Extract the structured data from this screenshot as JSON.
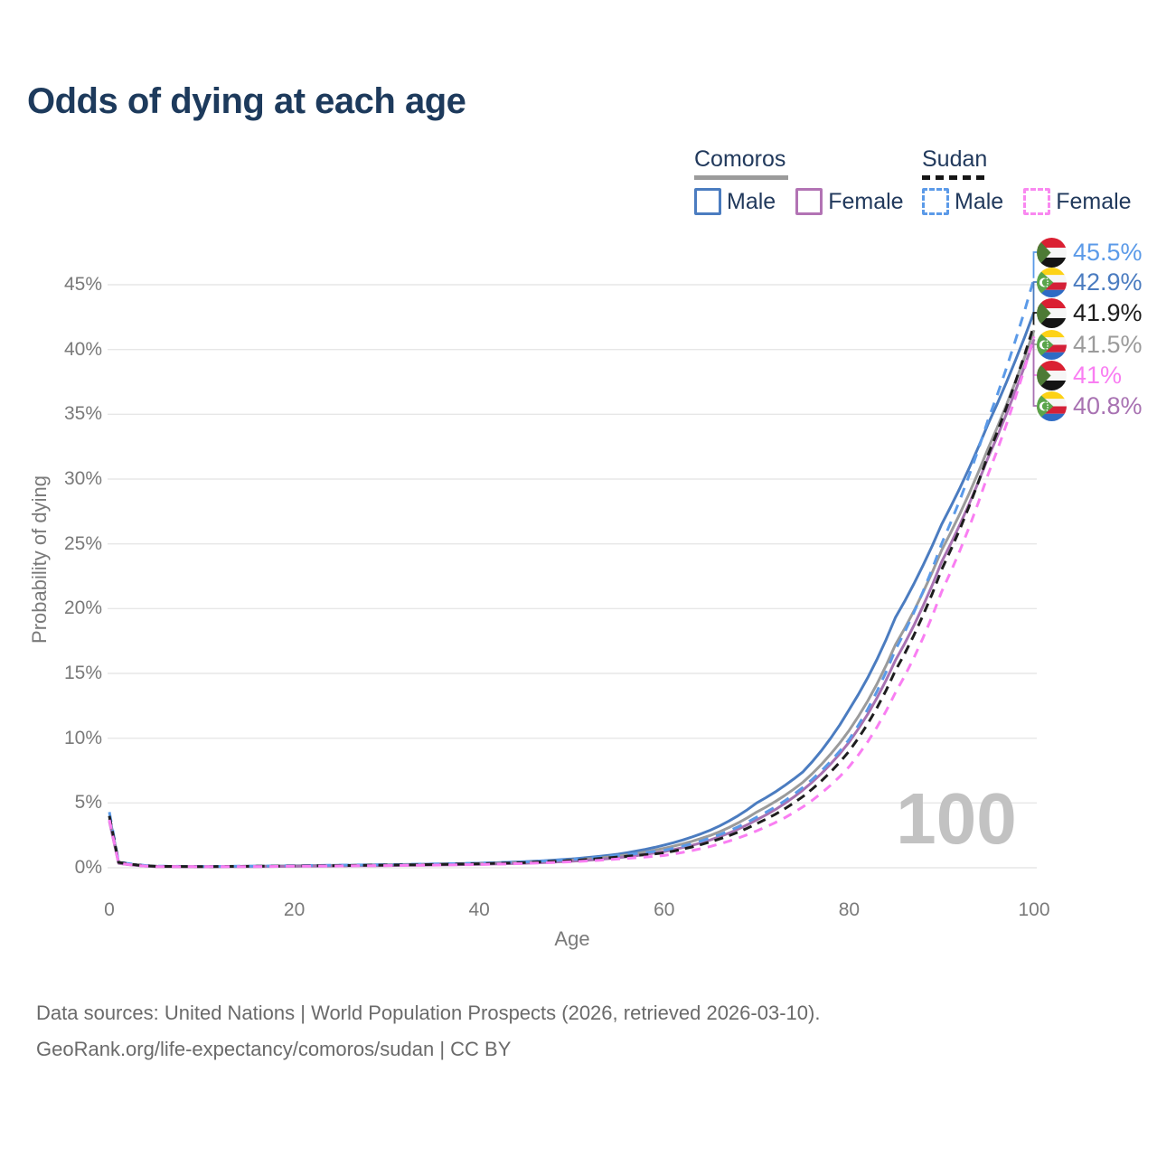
{
  "title": "Odds of dying at each age",
  "watermark": "100",
  "legend": {
    "groups": [
      {
        "country": "Comoros",
        "line_style": "solid",
        "underline_color": "#9b9b9b",
        "items": [
          {
            "label": "Male",
            "color": "#4b7cc0"
          },
          {
            "label": "Female",
            "color": "#b273b4"
          }
        ]
      },
      {
        "country": "Sudan",
        "line_style": "dashed",
        "underline_color": "#161616",
        "items": [
          {
            "label": "Male",
            "color": "#5b9ae8"
          },
          {
            "label": "Female",
            "color": "#f988f0"
          }
        ]
      }
    ]
  },
  "chart_data": {
    "type": "line",
    "title": "Odds of dying at each age",
    "xlabel": "Age",
    "ylabel": "Probability of dying",
    "xlim": [
      0,
      100
    ],
    "ylim": [
      0,
      47
    ],
    "x_ticks": [
      0,
      20,
      40,
      60,
      80,
      100
    ],
    "y_ticks": [
      0,
      5,
      10,
      15,
      20,
      25,
      30,
      35,
      40,
      45
    ],
    "y_tick_suffix": "%",
    "grid": "horizontal",
    "legend_position": "top-right",
    "ages": [
      0,
      1,
      5,
      10,
      15,
      20,
      25,
      30,
      35,
      40,
      45,
      50,
      55,
      60,
      65,
      70,
      75,
      80,
      85,
      90,
      95,
      100
    ],
    "series": [
      {
        "name": "Sudan Male",
        "country": "Sudan",
        "sex": "Male",
        "color": "#5b9ae8",
        "dashed": true,
        "dash": "11 9",
        "end_label": "45.5%",
        "values": [
          4.3,
          0.46,
          0.12,
          0.1,
          0.12,
          0.16,
          0.2,
          0.24,
          0.29,
          0.36,
          0.46,
          0.64,
          0.95,
          1.35,
          2.3,
          3.9,
          6.2,
          9.9,
          16.8,
          25.0,
          34.5,
          45.5
        ]
      },
      {
        "name": "Comoros Male",
        "country": "Comoros",
        "sex": "Male",
        "color": "#4b7cc0",
        "dashed": false,
        "dash": "",
        "end_label": "42.9%",
        "values": [
          4.0,
          0.42,
          0.11,
          0.09,
          0.11,
          0.15,
          0.19,
          0.23,
          0.28,
          0.35,
          0.47,
          0.68,
          1.05,
          1.75,
          2.9,
          5.0,
          7.4,
          12.2,
          19.3,
          26.5,
          34.2,
          42.9
        ]
      },
      {
        "name": "Sudan Both sexes",
        "country": "Sudan",
        "sex": "Both",
        "color": "#1d1d1d",
        "dashed": true,
        "dash": "10 7",
        "end_label": "41.9%",
        "values": [
          4.0,
          0.42,
          0.11,
          0.09,
          0.11,
          0.14,
          0.17,
          0.21,
          0.25,
          0.31,
          0.4,
          0.56,
          0.83,
          1.15,
          2.0,
          3.4,
          5.5,
          9.0,
          15.2,
          23.0,
          31.8,
          41.9
        ]
      },
      {
        "name": "Comoros Both sexes",
        "country": "Comoros",
        "sex": "Both",
        "color": "#9b9b9b",
        "dashed": false,
        "dash": "",
        "end_label": "41.5%",
        "values": [
          3.8,
          0.38,
          0.1,
          0.08,
          0.1,
          0.13,
          0.17,
          0.2,
          0.25,
          0.31,
          0.41,
          0.59,
          0.9,
          1.5,
          2.5,
          4.3,
          6.6,
          10.6,
          17.2,
          24.5,
          32.3,
          41.5
        ]
      },
      {
        "name": "Sudan Female",
        "country": "Sudan",
        "sex": "Female",
        "color": "#f97ef2",
        "dashed": true,
        "dash": "10 8",
        "end_label": "41%",
        "values": [
          3.7,
          0.36,
          0.09,
          0.08,
          0.09,
          0.12,
          0.14,
          0.17,
          0.2,
          0.25,
          0.33,
          0.46,
          0.68,
          0.95,
          1.65,
          2.85,
          4.7,
          7.8,
          13.5,
          21.3,
          30.3,
          41.0
        ]
      },
      {
        "name": "Comoros Female",
        "country": "Comoros",
        "sex": "Female",
        "color": "#a872b2",
        "dashed": false,
        "dash": "",
        "end_label": "40.8%",
        "values": [
          3.6,
          0.34,
          0.09,
          0.07,
          0.09,
          0.11,
          0.14,
          0.17,
          0.21,
          0.26,
          0.35,
          0.5,
          0.77,
          1.25,
          2.15,
          3.7,
          6.0,
          9.7,
          16.0,
          23.6,
          31.6,
          40.8
        ]
      }
    ]
  },
  "source": {
    "line1": "Data sources: United Nations | World Population Prospects (2026, retrieved 2026-03-10).",
    "line2": "GeoRank.org/life-expectancy/comoros/sudan | CC BY"
  }
}
